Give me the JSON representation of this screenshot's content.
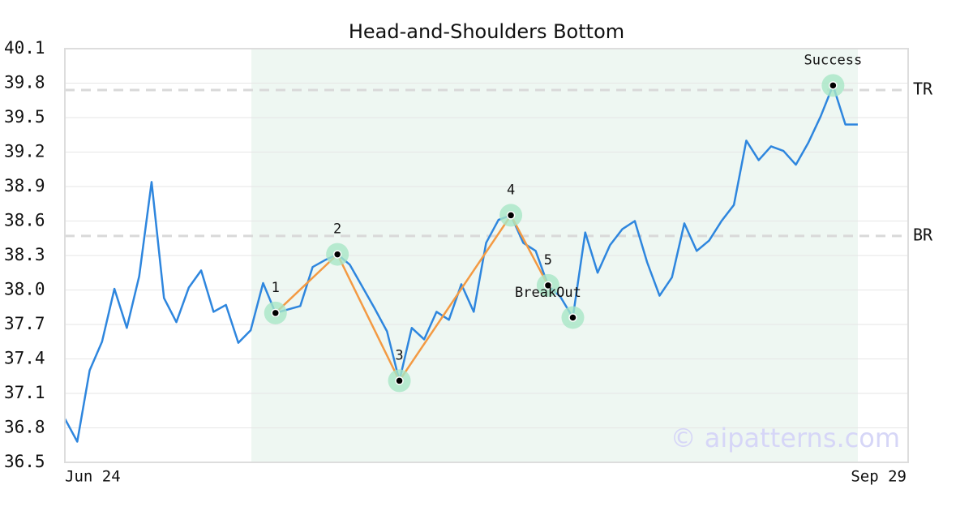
{
  "chart_data": {
    "type": "line",
    "title": "Head-and-Shoulders Bottom",
    "categories": [
      "Jun 24",
      null,
      null,
      null,
      null,
      null,
      null,
      null,
      null,
      null,
      null,
      null,
      null,
      null,
      null,
      null,
      null,
      null,
      null,
      null,
      null,
      null,
      null,
      null,
      null,
      null,
      null,
      null,
      null,
      null,
      null,
      null,
      null,
      null,
      null,
      null,
      null,
      null,
      null,
      null,
      null,
      null,
      null,
      null,
      null,
      null,
      null,
      null,
      null,
      null,
      null,
      null,
      null,
      null,
      null,
      null,
      null,
      null,
      null,
      null,
      null,
      null,
      null,
      null,
      "Sep 29"
    ],
    "series": [
      {
        "color": "#2e86de",
        "values": [
          36.88,
          36.68,
          37.3,
          37.55,
          38.01,
          37.67,
          38.12,
          38.94,
          37.93,
          37.72,
          38.02,
          38.17,
          37.81,
          37.87,
          37.54,
          37.65,
          38.06,
          37.8,
          37.83,
          37.86,
          38.2,
          38.26,
          38.31,
          38.22,
          38.03,
          37.84,
          37.64,
          37.21,
          37.67,
          37.57,
          37.81,
          37.74,
          38.05,
          37.81,
          38.41,
          38.61,
          38.65,
          38.41,
          38.34,
          38.04,
          37.94,
          37.76,
          38.5,
          38.15,
          38.39,
          38.53,
          38.6,
          38.24,
          37.95,
          38.11,
          38.58,
          38.34,
          38.43,
          38.6,
          38.74,
          39.3,
          39.13,
          39.25,
          39.21,
          39.09,
          39.28,
          39.51,
          39.78,
          39.44,
          39.44
        ]
      }
    ],
    "ylim": [
      36.5,
      40.1
    ],
    "yticks": [
      36.5,
      36.8,
      37.1,
      37.4,
      37.7,
      {
        "value": 38,
        "label": "38.0"
      },
      38.3,
      38.6,
      38.9,
      39.2,
      39.5,
      39.8,
      40.1
    ],
    "grid": true,
    "pattern_color": "#f39a43",
    "pattern_points": [
      {
        "label": "1",
        "value": 37.8
      },
      {
        "label": "2",
        "value": 38.31
      },
      {
        "label": "3",
        "value": 37.21
      },
      {
        "label": "4",
        "value": 38.65
      },
      {
        "label": "5",
        "value": 38.04,
        "note": "BreakOut"
      }
    ],
    "signals": [
      {
        "value": 37.76
      },
      {
        "label": "Success",
        "value": 39.78
      }
    ],
    "hlines": [
      {
        "label": "TR",
        "value": 39.74
      },
      {
        "label": "BR",
        "value": 38.47
      }
    ],
    "watermark": "© aipatterns.com"
  }
}
